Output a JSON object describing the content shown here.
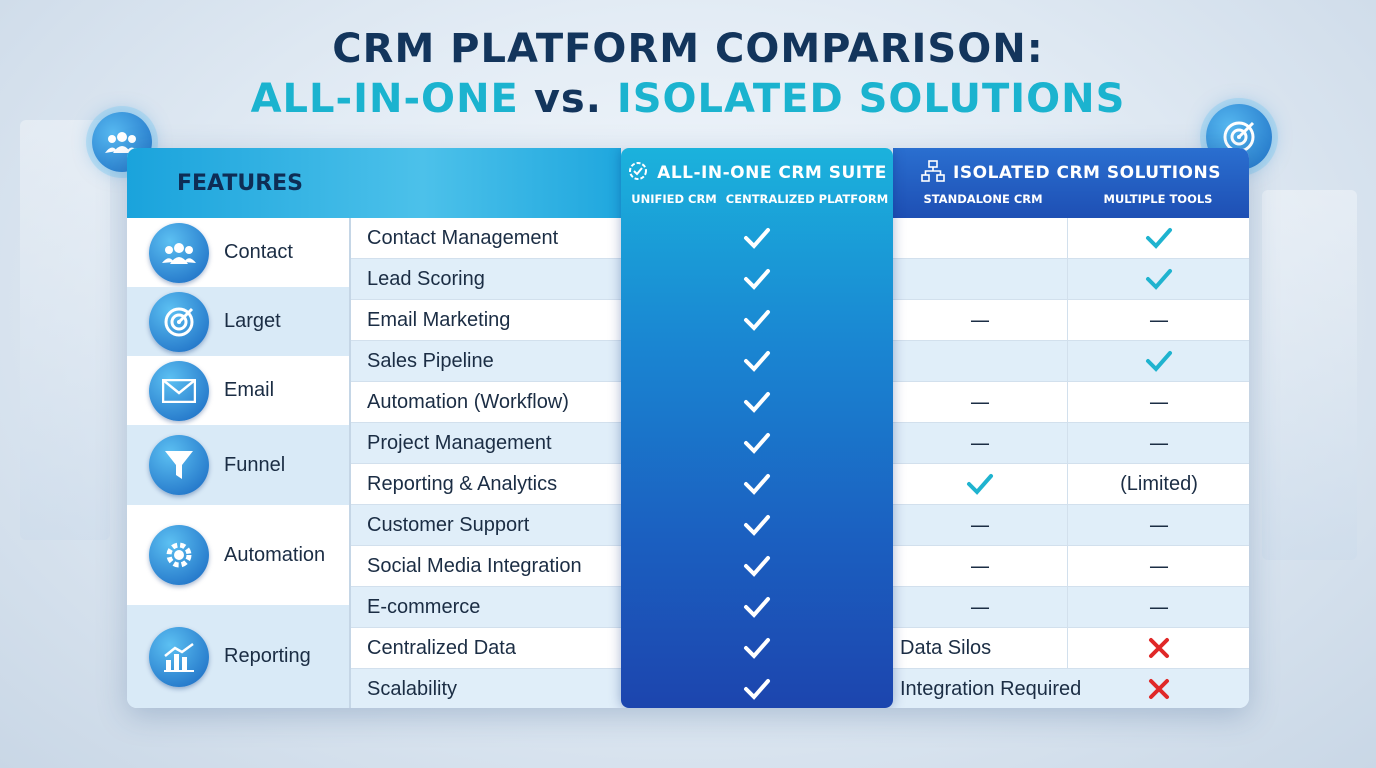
{
  "title": {
    "line1": "CRM PLATFORM COMPARISON:",
    "line2_a": "ALL-IN-ONE",
    "line2_vs": "vs.",
    "line2_b": "ISOLATED SOLUTIONS"
  },
  "header": {
    "features": "FEATURES",
    "aio_title": "ALL-IN-ONE CRM SUITE",
    "aio_sub1": "UNIFIED CRM",
    "aio_sub2": "CENTRALIZED PLATFORM",
    "iso_title": "ISOLATED CRM SOLUTIONS",
    "iso_sub1": "STANDALONE CRM",
    "iso_sub2": "MULTIPLE TOOLS"
  },
  "categories": [
    {
      "label": "Contact",
      "icon": "users-icon"
    },
    {
      "label": "Larget",
      "icon": "target-icon"
    },
    {
      "label": "Email",
      "icon": "envelope-icon"
    },
    {
      "label": "Funnel",
      "icon": "funnel-icon"
    },
    {
      "label": "Automation",
      "icon": "gear-icon"
    },
    {
      "label": "Reporting",
      "icon": "bar-chart-icon"
    }
  ],
  "rows": [
    {
      "feature": "Contact Management",
      "aio": "check",
      "standalone": "",
      "multiple": "check"
    },
    {
      "feature": "Lead Scoring",
      "aio": "check",
      "standalone": "",
      "multiple": "check"
    },
    {
      "feature": "Email Marketing",
      "aio": "check",
      "standalone": "—",
      "multiple": "—"
    },
    {
      "feature": "Sales Pipeline",
      "aio": "check",
      "standalone": "",
      "multiple": "check"
    },
    {
      "feature": "Automation (Workflow)",
      "aio": "check",
      "standalone": "—",
      "multiple": "—"
    },
    {
      "feature": "Project Management",
      "aio": "check",
      "standalone": "—",
      "multiple": "—"
    },
    {
      "feature": "Reporting & Analytics",
      "aio": "check",
      "standalone": "check",
      "multiple": "(Limited)"
    },
    {
      "feature": "Customer Support",
      "aio": "check",
      "standalone": "—",
      "multiple": "—"
    },
    {
      "feature": "Social Media Integration",
      "aio": "check",
      "standalone": "—",
      "multiple": "—"
    },
    {
      "feature": "E-commerce",
      "aio": "check",
      "standalone": "—",
      "multiple": "—"
    },
    {
      "feature": "Centralized Data",
      "aio": "check",
      "standalone": "Data Silos",
      "multiple": "cross"
    },
    {
      "feature": "Scalability",
      "aio": "check",
      "standalone": "Integration Required",
      "multiple": "cross"
    }
  ],
  "colors": {
    "title_dark": "#13355c",
    "title_accent": "#1bb3cf",
    "check_white": "#ffffff",
    "check_teal": "#1fb3cf",
    "cross_red": "#e02828"
  }
}
